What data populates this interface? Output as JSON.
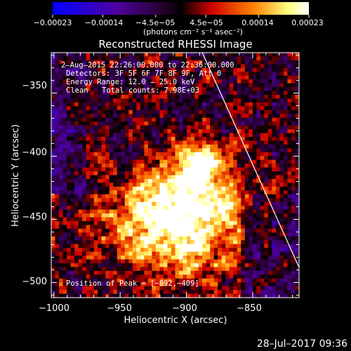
{
  "chart_data": {
    "type": "heatmap",
    "title": "Reconstructed RHESSI Image",
    "xlabel": "Heliocentric X (arcsec)",
    "ylabel": "Heliocentric Y (arcsec)",
    "xlim": [
      -1002,
      -815
    ],
    "ylim": [
      -512,
      -318
    ],
    "x_ticks": [
      -1000,
      -950,
      -900,
      -850
    ],
    "x_tick_labels": [
      "−1000",
      "−950",
      "−900",
      "−850"
    ],
    "y_ticks": [
      -350,
      -400,
      -450,
      -500
    ],
    "y_tick_labels": [
      "−350",
      "−400",
      "−450",
      "−500"
    ],
    "colorbar": {
      "range": [
        -0.00023,
        0.00023
      ],
      "ticks": [
        -0.00023,
        -0.00014,
        -4.5e-05,
        4.5e-05,
        0.00014,
        0.00023
      ],
      "tick_labels": [
        "−0.00023",
        "−0.00014",
        "−4.5e−05",
        "4.5e−05",
        "0.00014",
        "0.00023"
      ],
      "unit_label": "(photons cm⁻² s⁻¹ asec⁻²)",
      "colormap": [
        "#0000ff",
        "#5000a0",
        "#200020",
        "#000000",
        "#d00000",
        "#ff8000",
        "#ffff80",
        "#ffffff"
      ]
    },
    "annotations": {
      "time_range": "2–Aug–2015 22:26:00.000 to 22:36:00.000",
      "detectors": "Detectors: 3F 5F 6F 7F 8F 9F, Att 0",
      "energy_range": "Energy Range: 12.0 – 25.0 keV",
      "method": "Clean",
      "total_counts": "Total counts: 7.98E+03",
      "peak": "Position of Peak = [−892,−409]"
    },
    "peak": {
      "x": -892,
      "y": -409
    },
    "sources": [
      {
        "x": -892,
        "y": -409,
        "amplitude": 1.0,
        "sigma": 13
      },
      {
        "x": -900,
        "y": -458,
        "amplitude": 0.85,
        "sigma": 26
      },
      {
        "x": -920,
        "y": -432,
        "amplitude": 0.45,
        "sigma": 18
      },
      {
        "x": -945,
        "y": -455,
        "amplitude": 0.35,
        "sigma": 20
      },
      {
        "x": -870,
        "y": -440,
        "amplitude": 0.35,
        "sigma": 16
      }
    ],
    "limb": [
      [
        -888,
        -318
      ],
      [
        -815,
        -488
      ]
    ],
    "timestamp": "28–Jul–2017 09:36"
  }
}
